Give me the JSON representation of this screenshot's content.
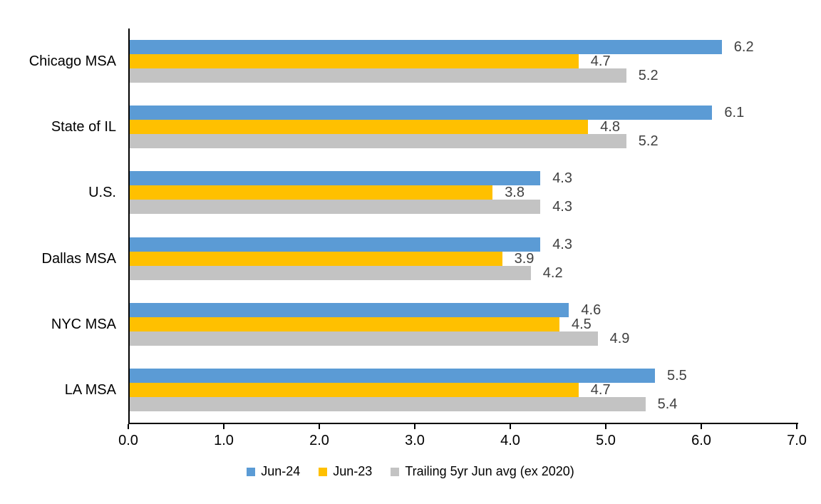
{
  "chart_data": {
    "type": "bar",
    "orientation": "horizontal",
    "title": "",
    "xlabel": "",
    "ylabel": "",
    "grid": false,
    "legend_position": "bottom",
    "data_labels_shown": true,
    "categories": [
      "Chicago MSA",
      "State of IL",
      "U.S.",
      "Dallas MSA",
      "NYC MSA",
      "LA MSA"
    ],
    "series": [
      {
        "name": "Jun-24",
        "color": "#5B9BD5",
        "values": [
          6.2,
          6.1,
          4.3,
          4.3,
          4.6,
          5.5
        ],
        "labels": [
          "6.2",
          "6.1",
          "4.3",
          "4.3",
          "4.6",
          "5.5"
        ]
      },
      {
        "name": "Jun-23",
        "color": "#FFC000",
        "values": [
          4.7,
          4.8,
          3.8,
          3.9,
          4.5,
          4.7
        ],
        "labels": [
          "4.7",
          "4.8",
          "3.8",
          "3.9",
          "4.5",
          "4.7"
        ]
      },
      {
        "name": "Trailing 5yr Jun avg (ex 2020)",
        "color": "#C3C3C3",
        "values": [
          5.2,
          5.2,
          4.3,
          4.2,
          4.9,
          5.4
        ],
        "labels": [
          "5.2",
          "5.2",
          "4.3",
          "4.2",
          "4.9",
          "5.4"
        ]
      }
    ],
    "xlim": [
      0,
      7
    ],
    "x_ticks": [
      "0.0",
      "1.0",
      "2.0",
      "3.0",
      "4.0",
      "5.0",
      "6.0",
      "7.0"
    ],
    "colors": {
      "axis": "#000000",
      "data_label": "#404040",
      "background": "#FFFFFF"
    }
  }
}
